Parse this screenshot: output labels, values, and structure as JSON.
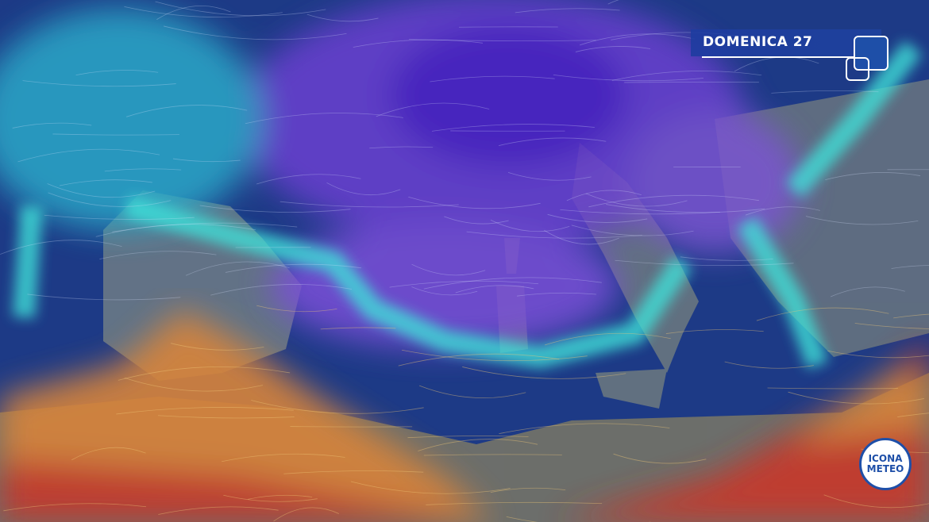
{
  "header": {
    "title": "DOMENICA 27"
  },
  "logo": {
    "line1": "ICONA",
    "line2": "METEO"
  },
  "colors": {
    "sea": "#1d3a86",
    "cold": "#6a3fd0",
    "front": "#3fe0d8",
    "warm": "#d8843a",
    "hot": "#c8382a",
    "brand": "#1e4fa8"
  }
}
